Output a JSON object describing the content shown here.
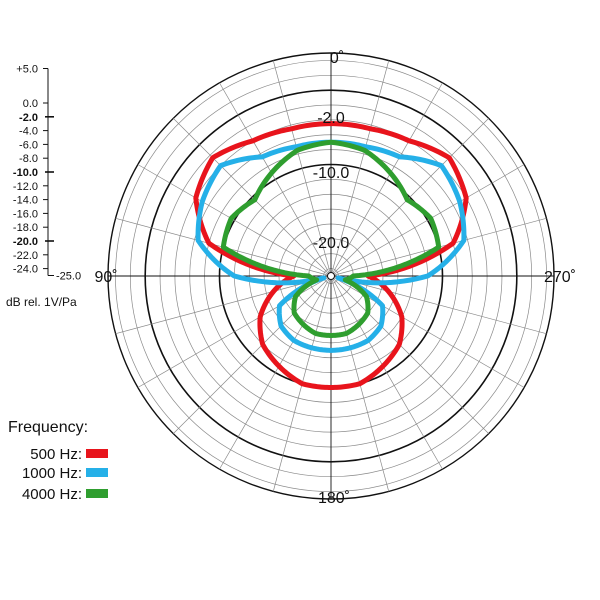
{
  "chart_data": {
    "type": "polar",
    "unit_label": "dB rel. 1V/Pa",
    "radial_range": [
      -25.0,
      5.0
    ],
    "scale_ticks": [
      "+5.0",
      "0.0",
      "-2.0",
      "-4.0",
      "-6.0",
      "-8.0",
      "-10.0",
      "-12.0",
      "-14.0",
      "-16.0",
      "-18.0",
      "-20.0",
      "-22.0",
      "-24.0",
      "-25.0"
    ],
    "major_ticks": [
      "-2.0",
      "-10.0",
      "-20.0"
    ],
    "ring_labels": [
      "-2.0",
      "-10.0",
      "-20.0"
    ],
    "angle_labels": {
      "top": "0˚",
      "left": "90˚",
      "right": "270˚",
      "bottom": "180˚"
    },
    "legend_title": "Frequency:",
    "series": [
      {
        "name": "500 Hz:",
        "color": "#e8141c",
        "angles": [
          0,
          15,
          30,
          45,
          60,
          75,
          90,
          105,
          120,
          135,
          150,
          165,
          180,
          195,
          210,
          225,
          240,
          255,
          270,
          285,
          300,
          315,
          330,
          345
        ],
        "values": [
          -4.5,
          -4.5,
          -4.0,
          -2.5,
          -4.0,
          -8.0,
          -20.0,
          -17.0,
          -14.0,
          -12.0,
          -11.0,
          -10.0,
          -10.0,
          -10.0,
          -11.0,
          -12.0,
          -14.0,
          -17.0,
          -20.0,
          -8.0,
          -4.0,
          -2.5,
          -4.0,
          -4.5
        ]
      },
      {
        "name": "1000 Hz:",
        "color": "#25b0e8",
        "angles": [
          0,
          15,
          30,
          45,
          60,
          75,
          90,
          105,
          120,
          135,
          150,
          165,
          180,
          195,
          210,
          225,
          240,
          255,
          270,
          285,
          300,
          315,
          330,
          345
        ],
        "values": [
          -7.0,
          -7.0,
          -6.5,
          -4.0,
          -5.0,
          -6.5,
          -12.0,
          -24.0,
          -17.0,
          -15.5,
          -15.0,
          -15.0,
          -15.0,
          -15.0,
          -15.0,
          -15.5,
          -17.0,
          -24.0,
          -12.0,
          -6.5,
          -5.0,
          -4.0,
          -6.5,
          -7.0
        ]
      },
      {
        "name": "4000 Hz:",
        "color": "#2f9e2f",
        "angles": [
          0,
          15,
          30,
          45,
          60,
          75,
          90,
          105,
          120,
          135,
          150,
          165,
          180,
          195,
          210,
          225,
          240,
          255,
          270,
          285,
          300,
          315,
          330,
          345
        ],
        "values": [
          -7.0,
          -7.5,
          -9.0,
          -10.5,
          -9.5,
          -10.0,
          -22.0,
          -23.0,
          -19.5,
          -18.0,
          -17.5,
          -17.0,
          -17.0,
          -17.0,
          -17.5,
          -18.0,
          -19.5,
          -23.0,
          -22.0,
          -10.0,
          -9.5,
          -10.5,
          -9.0,
          -7.5
        ]
      }
    ]
  }
}
